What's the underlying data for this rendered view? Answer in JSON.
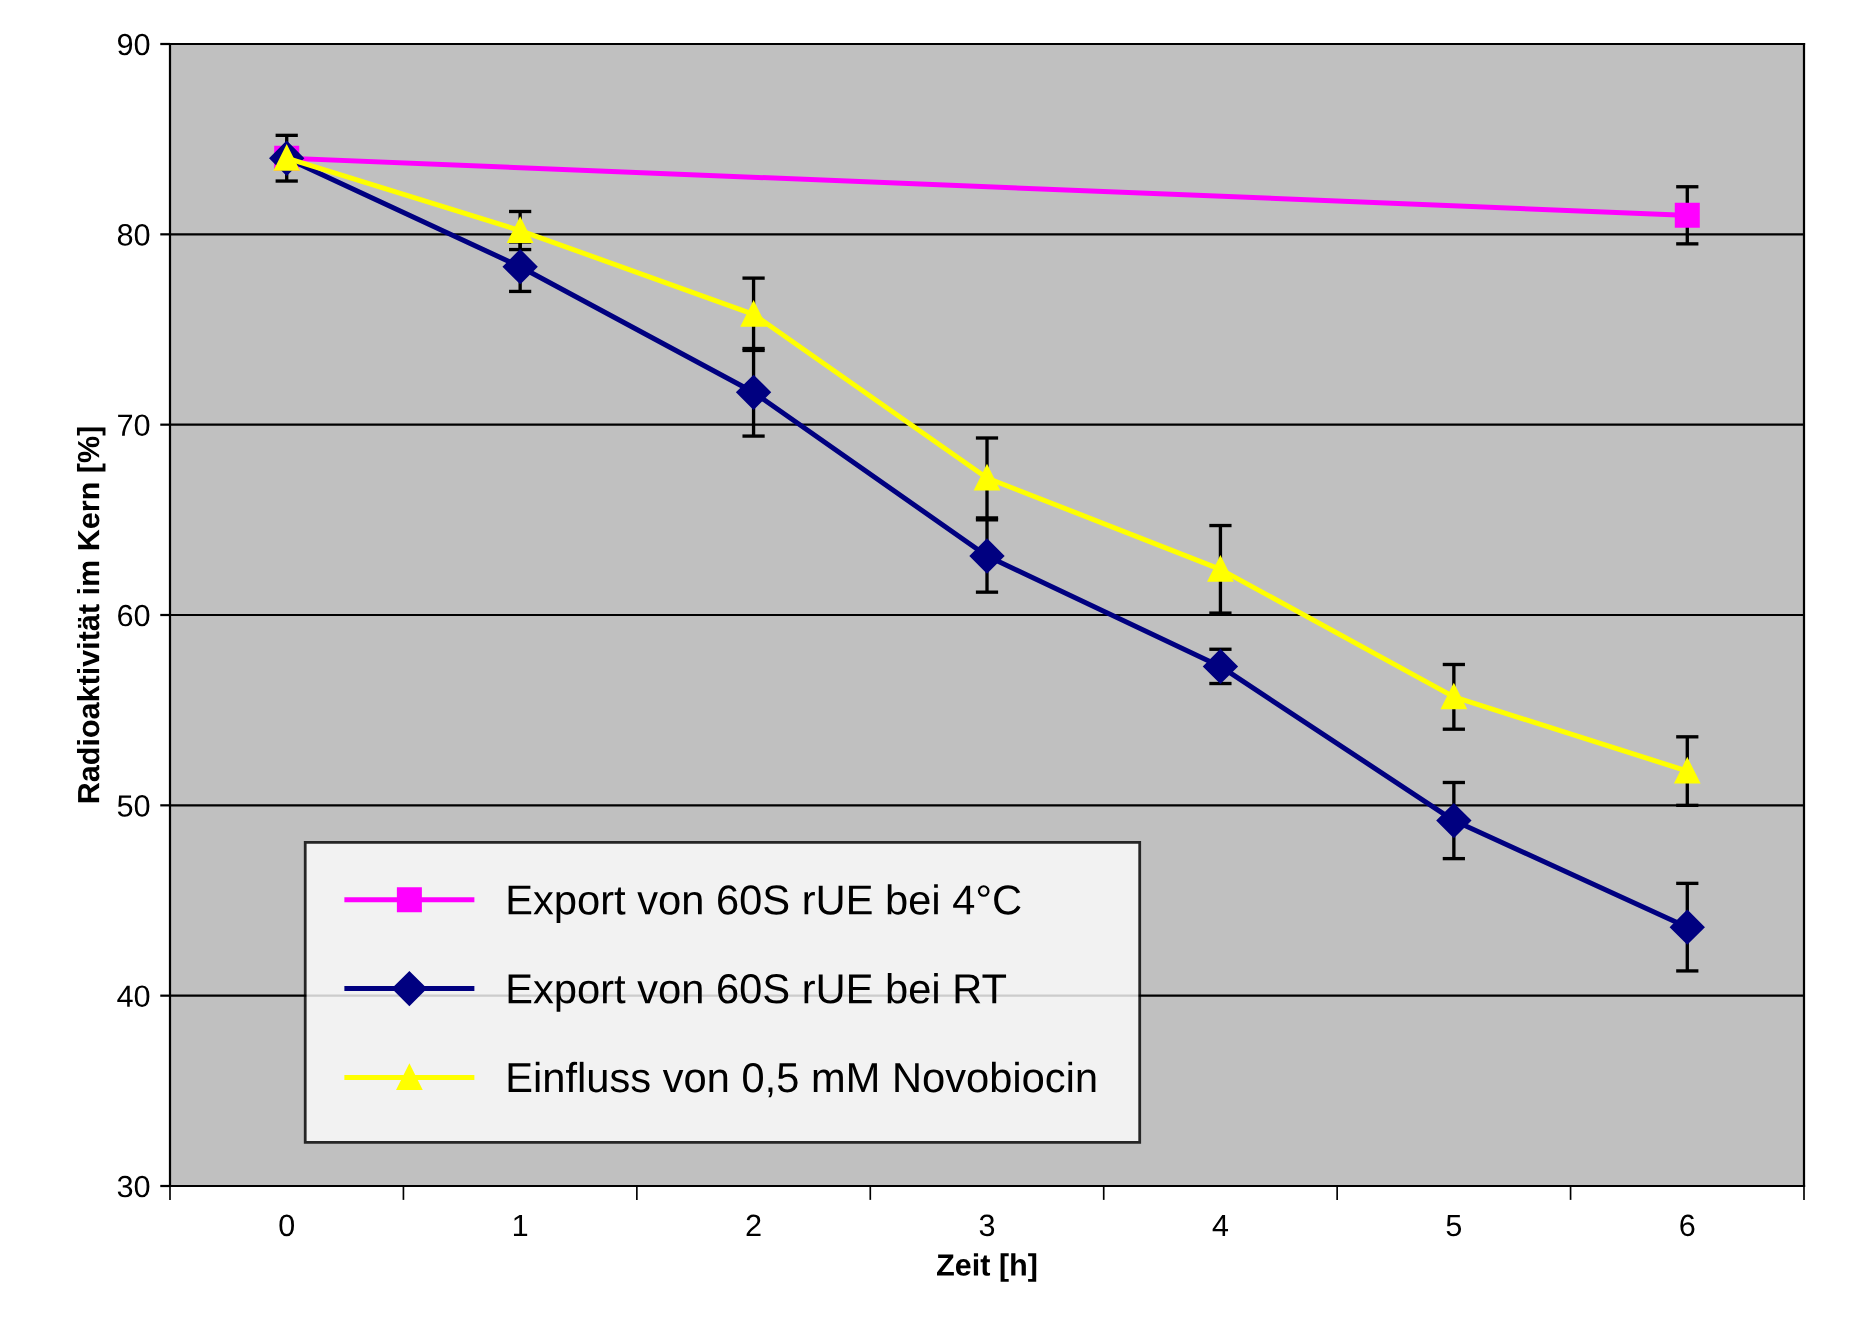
{
  "chart_data": {
    "type": "line",
    "xlabel": "Zeit [h]",
    "ylabel": "Radioaktivität im Kern [%]",
    "x": [
      0,
      1,
      2,
      3,
      4,
      5,
      6
    ],
    "xlim": [
      -0.5,
      6.5
    ],
    "xticks": [
      0,
      1,
      2,
      3,
      4,
      5,
      6,
      {
        "value": -0.5,
        "label": null
      },
      {
        "value": 0.5,
        "label": null
      },
      {
        "value": 1.5,
        "label": null
      },
      {
        "value": 2.5,
        "label": null
      },
      {
        "value": 3.5,
        "label": null
      },
      {
        "value": 4.5,
        "label": null
      },
      {
        "value": 5.5,
        "label": null
      },
      {
        "value": 6.5,
        "label": null
      }
    ],
    "ylim": [
      30,
      90
    ],
    "yticks": [
      30,
      40,
      50,
      60,
      70,
      80,
      90
    ],
    "grid": "y",
    "legend": "bottom left",
    "series": [
      {
        "name": "Export von 60S rUE bei 4°C",
        "color": "#ff00ff",
        "marker": "square",
        "x": [
          0,
          6
        ],
        "values": [
          84,
          81
        ],
        "errors": [
          1.2,
          1.5
        ]
      },
      {
        "name": "Export von 60S rUE bei RT",
        "color": "#000080",
        "marker": "diamond",
        "values": [
          84,
          78.3,
          71.7,
          63.1,
          57.3,
          49.2,
          43.6
        ],
        "errors": [
          null,
          1.3,
          2.3,
          1.9,
          0.9,
          2.0,
          2.3
        ]
      },
      {
        "name": "Einfluss von 0,5 mM Novobiocin",
        "color": "#ffff00",
        "marker": "triangle",
        "values": [
          84,
          80.2,
          75.8,
          67.2,
          62.4,
          55.7,
          51.8
        ],
        "errors": [
          null,
          1.0,
          1.9,
          2.1,
          2.3,
          1.7,
          1.8
        ]
      }
    ]
  }
}
